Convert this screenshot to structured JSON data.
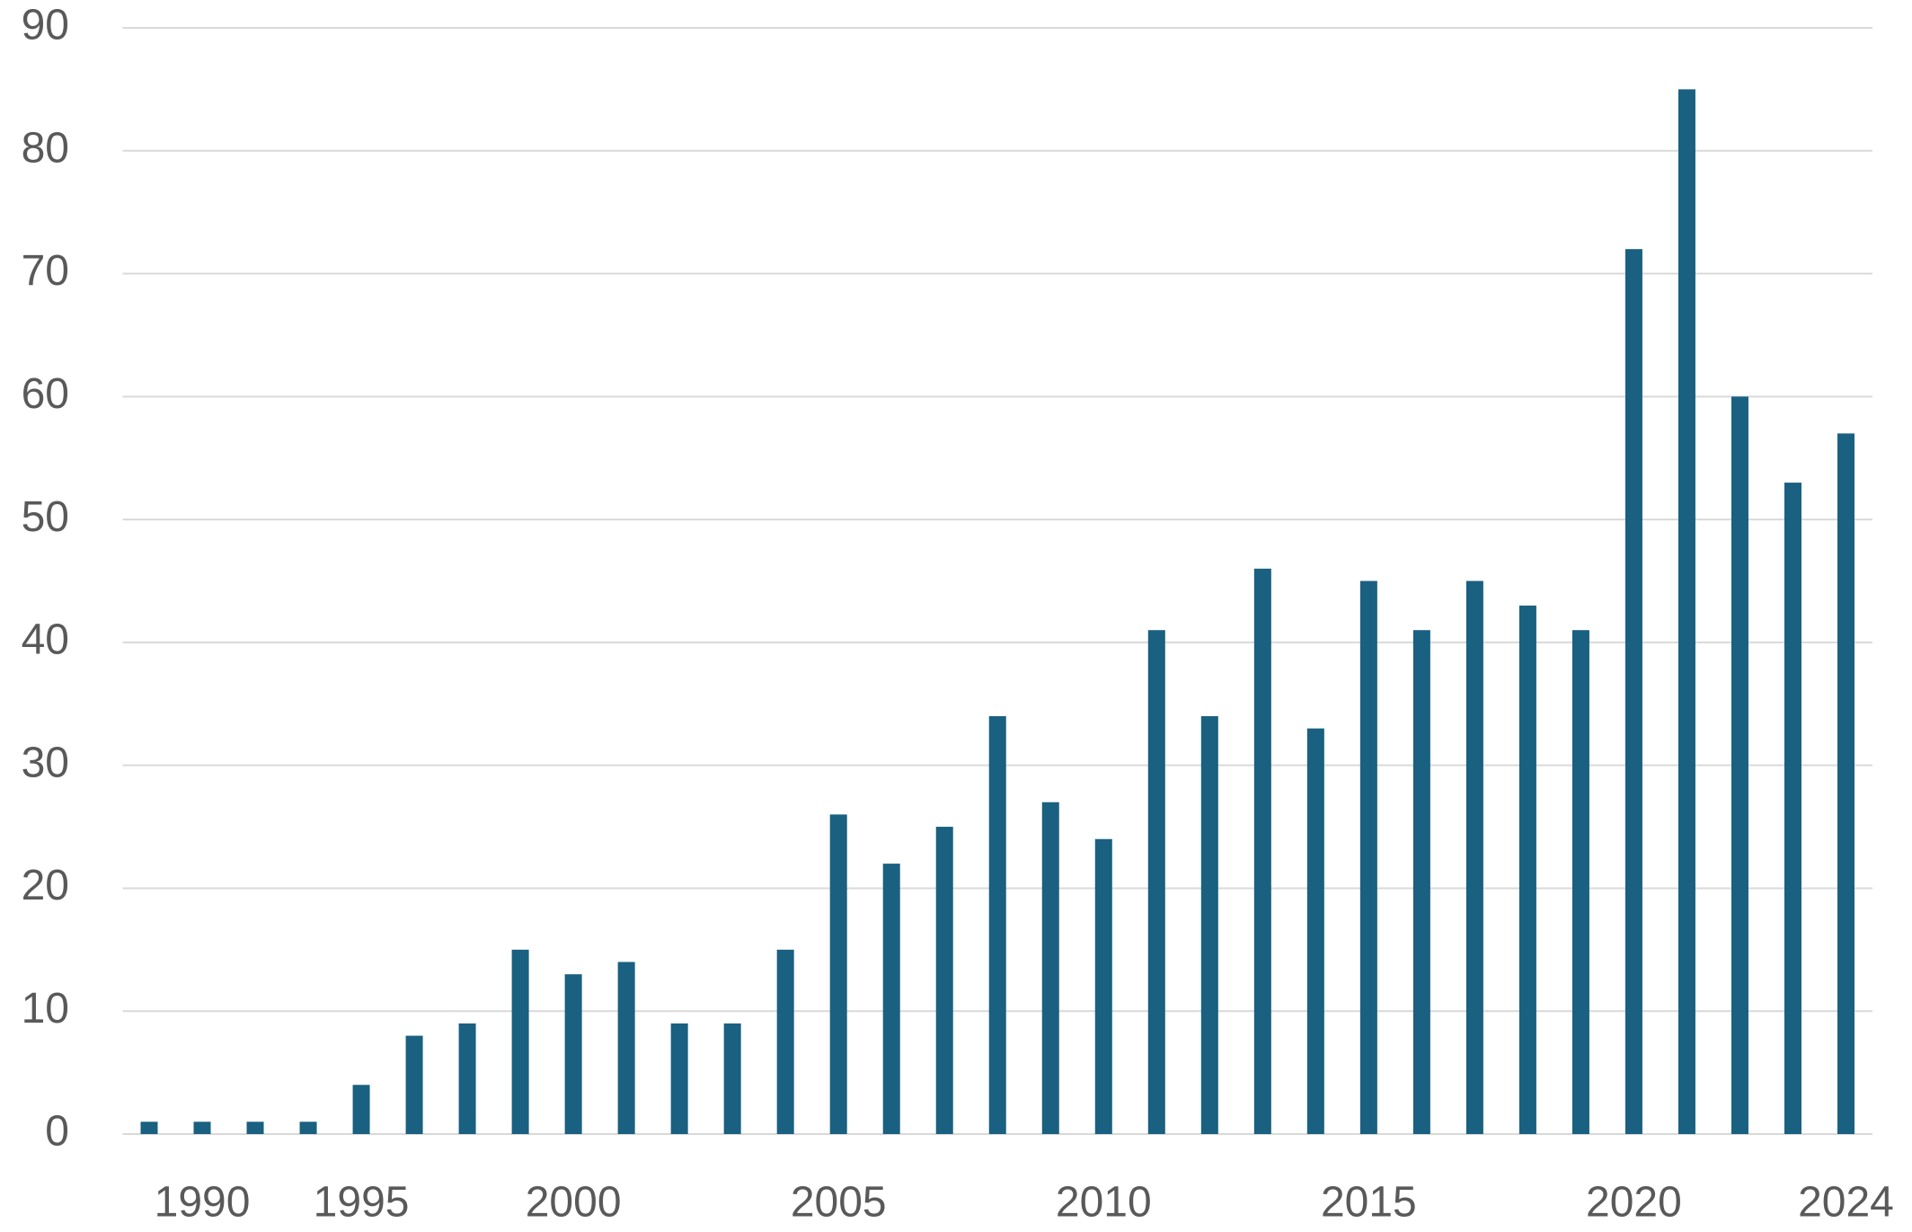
{
  "chart_data": {
    "type": "bar",
    "categories": [
      null,
      "1990",
      null,
      null,
      "1995",
      null,
      null,
      null,
      "2000",
      null,
      null,
      null,
      null,
      "2005",
      null,
      null,
      null,
      null,
      "2010",
      null,
      null,
      null,
      null,
      "2015",
      null,
      null,
      null,
      null,
      "2020",
      null,
      null,
      null,
      "2024"
    ],
    "values": [
      1,
      1,
      1,
      1,
      4,
      8,
      9,
      15,
      13,
      14,
      9,
      9,
      15,
      26,
      22,
      25,
      34,
      27,
      24,
      41,
      34,
      46,
      33,
      45,
      41,
      45,
      43,
      41,
      72,
      85,
      60,
      53,
      57
    ],
    "color": "#1a6080",
    "ylim": [
      0,
      90
    ],
    "yticks": [
      0,
      10,
      20,
      30,
      40,
      50,
      60,
      70,
      80,
      90
    ],
    "grid": true
  }
}
